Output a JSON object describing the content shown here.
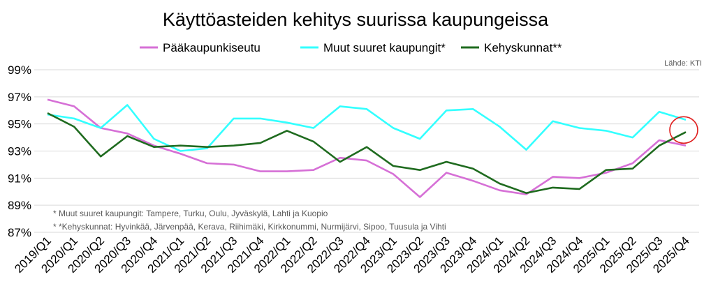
{
  "chart_data": {
    "type": "line",
    "title": "Käyttöasteiden kehitys suurissa kaupungeissa",
    "source": "Lähde: KTI",
    "ylim": [
      87,
      99
    ],
    "yticks": [
      99,
      97,
      95,
      93,
      91,
      89,
      87
    ],
    "ytick_labels": [
      "99%",
      "97%",
      "95%",
      "93%",
      "91%",
      "89%",
      "87%"
    ],
    "grid": true,
    "legend_position": "top",
    "categories": [
      "2019/Q1",
      "2020/Q1",
      "2020/Q2",
      "2020/Q3",
      "2020/Q4",
      "2021/Q1",
      "2021/Q2",
      "2021/Q3",
      "2021/Q4",
      "2022/Q1",
      "2022/Q2",
      "2022/Q3",
      "2022/Q4",
      "2023/Q1",
      "2023/Q2",
      "2023/Q3",
      "2023/Q4",
      "2024/Q1",
      "2024/Q2",
      "2024/Q3",
      "2024/Q4",
      "2025/Q1",
      "2025/Q2",
      "2025/Q3",
      "2025/Q4"
    ],
    "series": [
      {
        "name": "Pääkaupunkiseutu",
        "color": "#d670d6",
        "values": [
          96.8,
          96.3,
          94.7,
          94.3,
          93.4,
          92.8,
          92.1,
          92.0,
          91.5,
          91.5,
          91.6,
          92.5,
          92.3,
          91.3,
          89.6,
          91.4,
          90.8,
          90.1,
          89.8,
          91.1,
          91.0,
          91.4,
          92.1,
          93.8,
          93.4
        ]
      },
      {
        "name": "Muut suuret kaupungit*",
        "color": "#33ffff",
        "values": [
          95.7,
          95.4,
          94.7,
          96.4,
          93.9,
          93.0,
          93.2,
          95.4,
          95.4,
          95.1,
          94.7,
          96.3,
          96.1,
          94.7,
          93.9,
          96.0,
          96.1,
          94.8,
          93.1,
          95.2,
          94.7,
          94.5,
          94.0,
          95.9,
          95.3
        ]
      },
      {
        "name": "Kehyskunnat**",
        "color": "#1f6b1f",
        "values": [
          95.8,
          94.8,
          92.6,
          94.1,
          93.3,
          93.4,
          93.3,
          93.4,
          93.6,
          94.5,
          93.7,
          92.2,
          93.3,
          91.9,
          91.6,
          92.2,
          91.7,
          90.6,
          89.9,
          90.3,
          90.2,
          91.6,
          91.7,
          93.4,
          94.4
        ]
      }
    ],
    "notes": [
      "* Muut suuret kaupungit: Tampere, Turku, Oulu, Jyväskylä, Lahti ja Kuopio",
      "* *Kehyskunnat: Hyvinkää, Järvenpää, Kerava, Riihimäki, Kirkkonummi, Nurmijärvi, Sipoo, Tuusula ja Vihti"
    ],
    "highlight": {
      "series": "Kehyskunnat**",
      "category": "2025/Q4",
      "color": "#e02020"
    }
  }
}
